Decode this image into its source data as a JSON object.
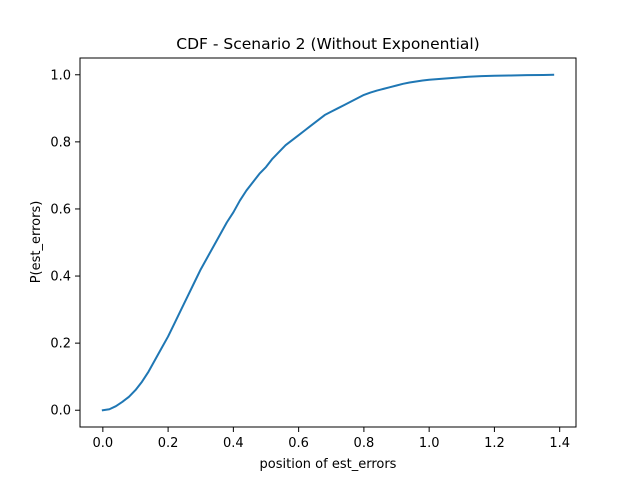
{
  "chart_data": {
    "type": "line",
    "title": "CDF - Scenario 2 (Without Exponential)",
    "xlabel": "position of est_errors",
    "ylabel": "P(est_errors)",
    "xlim": [
      -0.07,
      1.45
    ],
    "ylim": [
      -0.05,
      1.05
    ],
    "xticks": [
      0.0,
      0.2,
      0.4,
      0.6,
      0.8,
      1.0,
      1.2,
      1.4
    ],
    "xtick_labels": [
      "0.0",
      "0.2",
      "0.4",
      "0.6",
      "0.8",
      "1.0",
      "1.2",
      "1.4"
    ],
    "yticks": [
      0.0,
      0.2,
      0.4,
      0.6,
      0.8,
      1.0
    ],
    "ytick_labels": [
      "0.0",
      "0.2",
      "0.4",
      "0.6",
      "0.8",
      "1.0"
    ],
    "grid": false,
    "legend": "none",
    "series": [
      {
        "color": "#1f77b4",
        "x": [
          0.0,
          0.02,
          0.04,
          0.06,
          0.08,
          0.1,
          0.12,
          0.14,
          0.16,
          0.18,
          0.2,
          0.22,
          0.24,
          0.26,
          0.28,
          0.3,
          0.32,
          0.34,
          0.36,
          0.38,
          0.4,
          0.42,
          0.44,
          0.46,
          0.48,
          0.5,
          0.52,
          0.54,
          0.56,
          0.58,
          0.6,
          0.62,
          0.64,
          0.66,
          0.68,
          0.7,
          0.72,
          0.74,
          0.76,
          0.78,
          0.8,
          0.82,
          0.84,
          0.86,
          0.88,
          0.9,
          0.92,
          0.94,
          0.96,
          0.98,
          1.0,
          1.04,
          1.08,
          1.12,
          1.16,
          1.2,
          1.25,
          1.3,
          1.35,
          1.38
        ],
        "y": [
          0.0,
          0.003,
          0.012,
          0.025,
          0.04,
          0.06,
          0.085,
          0.115,
          0.15,
          0.185,
          0.22,
          0.26,
          0.3,
          0.34,
          0.38,
          0.42,
          0.455,
          0.49,
          0.525,
          0.56,
          0.59,
          0.625,
          0.655,
          0.68,
          0.705,
          0.725,
          0.75,
          0.77,
          0.79,
          0.805,
          0.82,
          0.835,
          0.85,
          0.865,
          0.88,
          0.89,
          0.9,
          0.91,
          0.92,
          0.93,
          0.94,
          0.947,
          0.953,
          0.958,
          0.963,
          0.968,
          0.973,
          0.977,
          0.98,
          0.983,
          0.985,
          0.988,
          0.991,
          0.994,
          0.996,
          0.997,
          0.998,
          0.999,
          0.9995,
          1.0
        ]
      }
    ]
  }
}
